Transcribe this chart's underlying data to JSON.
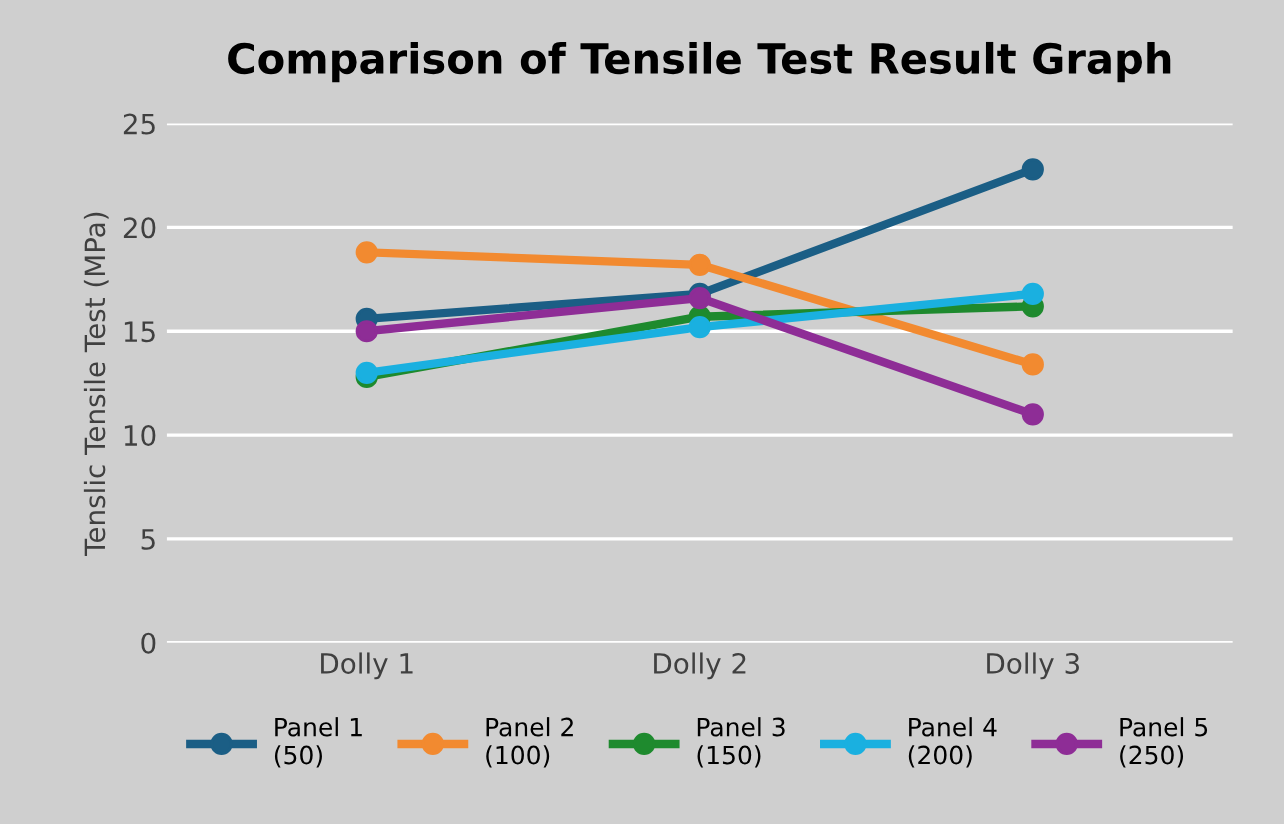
{
  "chart_data": {
    "type": "line",
    "title": "Comparison of Tensile Test Result Graph",
    "ylabel": "Tenslic Tensile Test (MPa)",
    "categories": [
      "Dolly 1",
      "Dolly 2",
      "Dolly 3"
    ],
    "series": [
      {
        "name": "Panel 1\n(50)",
        "color": "#1b5e85",
        "values": [
          15.6,
          16.8,
          22.8
        ]
      },
      {
        "name": "Panel 2\n(100)",
        "color": "#f28a30",
        "values": [
          18.8,
          18.2,
          13.4
        ]
      },
      {
        "name": "Panel 3\n(150)",
        "color": "#1e8a2e",
        "values": [
          12.8,
          15.7,
          16.2
        ]
      },
      {
        "name": "Panel 4\n(200)",
        "color": "#1ab0e0",
        "values": [
          13.0,
          15.2,
          16.8
        ]
      },
      {
        "name": "Panel 5\n(250)",
        "color": "#8e2d96",
        "values": [
          15.0,
          16.6,
          11.0
        ]
      }
    ],
    "ylim": [
      0,
      25
    ],
    "yticks": [
      0,
      5,
      10,
      15,
      20,
      25
    ],
    "grid": "y",
    "legend": "bottom",
    "marker": "circle",
    "line_style": "solid"
  }
}
